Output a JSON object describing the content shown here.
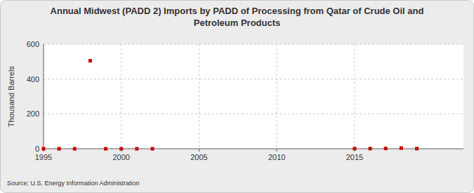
{
  "chart_data": {
    "type": "scatter",
    "title": "Annual Midwest (PADD 2) Imports by PADD of Processing from Qatar of Crude Oil and Petroleum Products",
    "y_label": "Thousand Barrels",
    "source": "Source: U.S. Energy Information Administration",
    "x": [
      1995,
      1996,
      1997,
      1998,
      1999,
      2000,
      2001,
      2002,
      2015,
      2016,
      2017,
      2018,
      2019
    ],
    "values": [
      0,
      0,
      0,
      505,
      0,
      0,
      0,
      0,
      1,
      1,
      2,
      4,
      1
    ],
    "color": "#cc0000",
    "marker": "square",
    "xlim": [
      1995,
      2022
    ],
    "xticks": [
      1995,
      2000,
      2005,
      2010,
      2015
    ],
    "ylim": [
      0,
      600
    ],
    "yticks": [
      0,
      200,
      400,
      600
    ],
    "grid": true
  }
}
